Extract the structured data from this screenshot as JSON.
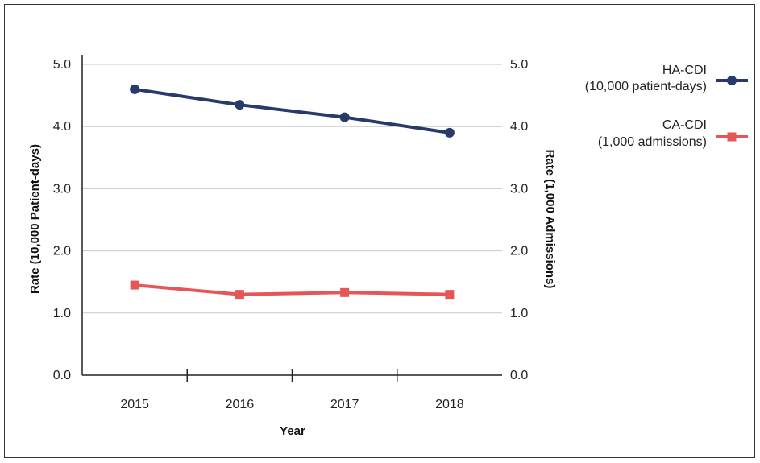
{
  "chart_data": {
    "type": "line",
    "title": "",
    "categories": [
      "2015",
      "2016",
      "2017",
      "2018"
    ],
    "xlabel": "Year",
    "ylabel_left": "Rate (10,000 Patient-days)",
    "ylabel_right": "Rate (1,000 Admissions)",
    "ylim": [
      0,
      5
    ],
    "y_ticks": [
      "0.0",
      "1.0",
      "2.0",
      "3.0",
      "4.0",
      "5.0"
    ],
    "y_tick_values": [
      0,
      1,
      2,
      3,
      4,
      5
    ],
    "grid": true,
    "legend_position": "right",
    "series": [
      {
        "name_line1": "HA-CDI",
        "name_line2": "(10,000 patient-days)",
        "axis": "left",
        "marker": "circle",
        "color": "#263a6b",
        "values": [
          4.6,
          4.35,
          4.15,
          3.9
        ]
      },
      {
        "name_line1": "CA-CDI",
        "name_line2": "(1,000 admissions)",
        "axis": "right",
        "marker": "square",
        "color": "#e45756",
        "values": [
          1.45,
          1.3,
          1.33,
          1.3
        ]
      }
    ]
  }
}
